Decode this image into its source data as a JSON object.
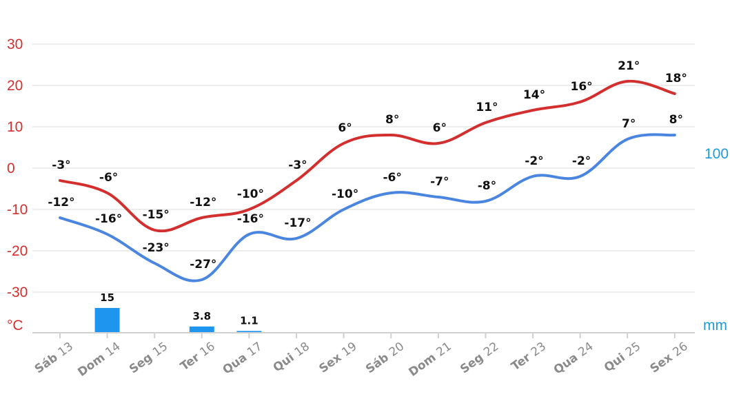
{
  "chart_data": {
    "type": "line",
    "categories": [
      {
        "day": "Sáb",
        "num": "13"
      },
      {
        "day": "Dom",
        "num": "14"
      },
      {
        "day": "Seg",
        "num": "15"
      },
      {
        "day": "Ter",
        "num": "16"
      },
      {
        "day": "Qua",
        "num": "17"
      },
      {
        "day": "Qui",
        "num": "18"
      },
      {
        "day": "Sex",
        "num": "19"
      },
      {
        "day": "Sáb",
        "num": "20"
      },
      {
        "day": "Dom",
        "num": "21"
      },
      {
        "day": "Seg",
        "num": "22"
      },
      {
        "day": "Ter",
        "num": "23"
      },
      {
        "day": "Qua",
        "num": "24"
      },
      {
        "day": "Qui",
        "num": "25"
      },
      {
        "day": "Sex",
        "num": "26"
      }
    ],
    "series": [
      {
        "color": "#d32f2f",
        "values": [
          -3,
          -6,
          -15,
          -12,
          -10,
          -3,
          6,
          8,
          6,
          11,
          14,
          16,
          21,
          18
        ],
        "labels": [
          "-3°",
          "-6°",
          "-15°",
          "-12°",
          "-10°",
          "-3°",
          "6°",
          "8°",
          "6°",
          "11°",
          "14°",
          "16°",
          "21°",
          "18°"
        ]
      },
      {
        "color": "#4a86e0",
        "values": [
          -12,
          -16,
          -23,
          -27,
          -16,
          -17,
          -10,
          -6,
          -7,
          -8,
          -2,
          -2,
          7,
          8
        ],
        "labels": [
          "-12°",
          "-16°",
          "-23°",
          "-27°",
          "-16°",
          "-17°",
          "-10°",
          "-6°",
          "-7°",
          "-8°",
          "-2°",
          "-2°",
          "7°",
          "8°"
        ]
      }
    ],
    "precipitation": {
      "color": "#1e96f0",
      "values": [
        null,
        15,
        null,
        3.8,
        1.1,
        null,
        null,
        null,
        null,
        null,
        null,
        null,
        null,
        null
      ],
      "labels": [
        "",
        "15",
        "",
        "3.8",
        "1.1",
        "",
        "",
        "",
        "",
        "",
        "",
        "",
        "",
        ""
      ],
      "ylim": [
        0,
        100
      ]
    },
    "y_ticks": [
      "30",
      "20",
      "10",
      "0",
      "-10",
      "-20",
      "-30"
    ],
    "ylim": [
      -40,
      30
    ],
    "y_unit": "°C",
    "y2_top_label": "100",
    "y2_unit": "mm",
    "grid": true
  }
}
